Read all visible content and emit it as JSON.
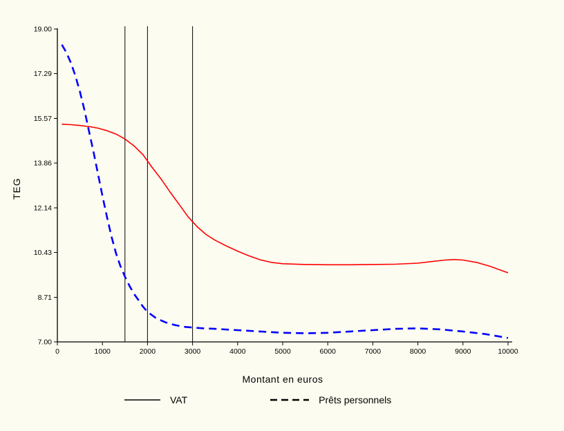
{
  "colors": {
    "background": "#FCFCF0",
    "axis": "#000000",
    "vat_line": "#FF0000",
    "prets_line": "#0000FF"
  },
  "chart_data": {
    "type": "line",
    "title": "",
    "xlabel": "Montant en euros",
    "ylabel": "TEG",
    "xlim": [
      0,
      10000
    ],
    "ylim": [
      7.0,
      19.0
    ],
    "x_ticks": [
      0,
      1000,
      2000,
      3000,
      4000,
      5000,
      6000,
      7000,
      8000,
      9000,
      10000
    ],
    "y_ticks": [
      7.0,
      8.71,
      10.43,
      12.14,
      13.86,
      15.57,
      17.29,
      19.0
    ],
    "reference_lines_x": [
      1500,
      2000,
      3000
    ],
    "grid": false,
    "legend_position": "bottom",
    "series": [
      {
        "name": "VAT",
        "color": "#FF0000",
        "style": "solid",
        "x": [
          100,
          300,
          500,
          700,
          900,
          1100,
          1300,
          1500,
          1700,
          1900,
          2100,
          2300,
          2500,
          2700,
          2900,
          3100,
          3300,
          3500,
          3750,
          4000,
          4250,
          4500,
          4750,
          5000,
          5500,
          6000,
          6500,
          7000,
          7500,
          8000,
          8300,
          8600,
          8800,
          9000,
          9300,
          9600,
          10000
        ],
        "y": [
          15.35,
          15.33,
          15.3,
          15.26,
          15.2,
          15.1,
          14.97,
          14.78,
          14.52,
          14.18,
          13.7,
          13.25,
          12.75,
          12.28,
          11.8,
          11.42,
          11.12,
          10.9,
          10.68,
          10.48,
          10.3,
          10.15,
          10.05,
          10.0,
          9.97,
          9.96,
          9.96,
          9.97,
          9.98,
          10.02,
          10.08,
          10.14,
          10.16,
          10.14,
          10.05,
          9.9,
          9.65
        ]
      },
      {
        "name": "Prêts personnels",
        "color": "#0000FF",
        "style": "dashed",
        "x": [
          100,
          200,
          300,
          400,
          500,
          600,
          700,
          800,
          900,
          1000,
          1100,
          1200,
          1300,
          1400,
          1500,
          1600,
          1700,
          1800,
          1900,
          2000,
          2200,
          2400,
          2600,
          2800,
          3000,
          3250,
          3500,
          4000,
          4500,
          5000,
          5500,
          6000,
          6500,
          7000,
          7500,
          8000,
          8500,
          9000,
          9500,
          10000
        ],
        "y": [
          18.4,
          18.1,
          17.7,
          17.2,
          16.6,
          15.9,
          15.1,
          14.3,
          13.45,
          12.6,
          11.8,
          11.05,
          10.4,
          9.9,
          9.5,
          9.15,
          8.85,
          8.6,
          8.35,
          8.15,
          7.9,
          7.75,
          7.65,
          7.58,
          7.55,
          7.52,
          7.5,
          7.45,
          7.4,
          7.35,
          7.33,
          7.35,
          7.4,
          7.45,
          7.5,
          7.52,
          7.48,
          7.4,
          7.3,
          7.15
        ]
      }
    ],
    "legend": [
      {
        "label": "VAT"
      },
      {
        "label": "Prêts personnels"
      }
    ]
  }
}
